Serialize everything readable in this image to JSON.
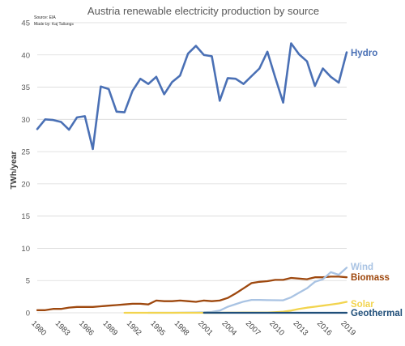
{
  "chart_data": {
    "type": "line",
    "title": "Austria renewable electricity production by source",
    "source_lines": [
      "Source: EIA",
      "Made by: Kaj Tallungs"
    ],
    "ylabel": "TWh/year",
    "xlabel": "",
    "ylim": [
      0,
      45
    ],
    "yticks": [
      0,
      5,
      10,
      15,
      20,
      25,
      30,
      35,
      40,
      45
    ],
    "xlim": [
      1980,
      2019
    ],
    "xticks": [
      1980,
      1983,
      1986,
      1989,
      1992,
      1995,
      1998,
      2001,
      2004,
      2007,
      2010,
      2013,
      2016,
      2019
    ],
    "grid": "horizontal",
    "legend": "labels at line ends (right)",
    "series": [
      {
        "name": "Hydro",
        "color": "#4a70b5",
        "x": [
          1980,
          1981,
          1982,
          1983,
          1984,
          1985,
          1986,
          1987,
          1988,
          1989,
          1990,
          1991,
          1992,
          1993,
          1994,
          1995,
          1996,
          1997,
          1998,
          1999,
          2000,
          2001,
          2002,
          2003,
          2004,
          2005,
          2006,
          2007,
          2008,
          2009,
          2010,
          2011,
          2012,
          2013,
          2014,
          2015,
          2016,
          2017,
          2018,
          2019
        ],
        "values": [
          28.5,
          30.0,
          29.9,
          29.6,
          28.4,
          30.3,
          30.5,
          25.4,
          35.1,
          34.7,
          31.2,
          31.1,
          34.4,
          36.3,
          35.5,
          36.6,
          33.9,
          35.8,
          36.8,
          40.2,
          41.4,
          40.0,
          39.8,
          32.9,
          36.4,
          36.3,
          35.5,
          36.7,
          37.9,
          40.5,
          36.5,
          32.6,
          41.8,
          40.1,
          39.0,
          35.2,
          37.9,
          36.6,
          35.7,
          40.4
        ]
      },
      {
        "name": "Wind",
        "color": "#a9c3e3",
        "x": [
          1994,
          1995,
          1996,
          1997,
          1998,
          1999,
          2000,
          2001,
          2002,
          2003,
          2004,
          2005,
          2006,
          2007,
          2008,
          2009,
          2010,
          2011,
          2012,
          2013,
          2014,
          2015,
          2016,
          2017,
          2018,
          2019
        ],
        "values": [
          0,
          0,
          0,
          0,
          0.01,
          0.02,
          0.05,
          0.07,
          0.14,
          0.34,
          0.93,
          1.33,
          1.74,
          2.0,
          2.0,
          1.96,
          1.95,
          1.93,
          2.4,
          3.1,
          3.8,
          4.8,
          5.2,
          6.3,
          5.9,
          7.0
        ]
      },
      {
        "name": "Biomass",
        "color": "#9e480e",
        "x": [
          1980,
          1981,
          1982,
          1983,
          1984,
          1985,
          1986,
          1987,
          1988,
          1989,
          1990,
          1991,
          1992,
          1993,
          1994,
          1995,
          1996,
          1997,
          1998,
          1999,
          2000,
          2001,
          2002,
          2003,
          2004,
          2005,
          2006,
          2007,
          2008,
          2009,
          2010,
          2011,
          2012,
          2013,
          2014,
          2015,
          2016,
          2017,
          2018,
          2019
        ],
        "values": [
          0.4,
          0.4,
          0.6,
          0.6,
          0.8,
          0.9,
          0.9,
          0.9,
          1.0,
          1.1,
          1.2,
          1.3,
          1.4,
          1.4,
          1.3,
          1.9,
          1.8,
          1.8,
          1.9,
          1.8,
          1.7,
          1.9,
          1.8,
          1.9,
          2.3,
          3.0,
          3.8,
          4.6,
          4.8,
          4.9,
          5.1,
          5.1,
          5.4,
          5.3,
          5.2,
          5.5,
          5.5,
          5.6,
          5.6,
          5.5
        ]
      },
      {
        "name": "Solar",
        "color": "#f2d44e",
        "x": [
          1991,
          1992,
          1993,
          1994,
          1995,
          1996,
          1997,
          1998,
          1999,
          2000,
          2001,
          2002,
          2003,
          2004,
          2005,
          2006,
          2007,
          2008,
          2009,
          2010,
          2011,
          2012,
          2013,
          2014,
          2015,
          2016,
          2017,
          2018,
          2019
        ],
        "values": [
          0,
          0,
          0,
          0,
          0,
          0,
          0,
          0,
          0,
          0,
          0,
          0,
          0,
          0.01,
          0.01,
          0.02,
          0.02,
          0.02,
          0.03,
          0.09,
          0.17,
          0.34,
          0.6,
          0.79,
          0.94,
          1.1,
          1.27,
          1.44,
          1.7
        ]
      },
      {
        "name": "Geothermal",
        "color": "#1f4e79",
        "x": [
          2001,
          2019
        ],
        "values": [
          0,
          0
        ]
      }
    ]
  }
}
